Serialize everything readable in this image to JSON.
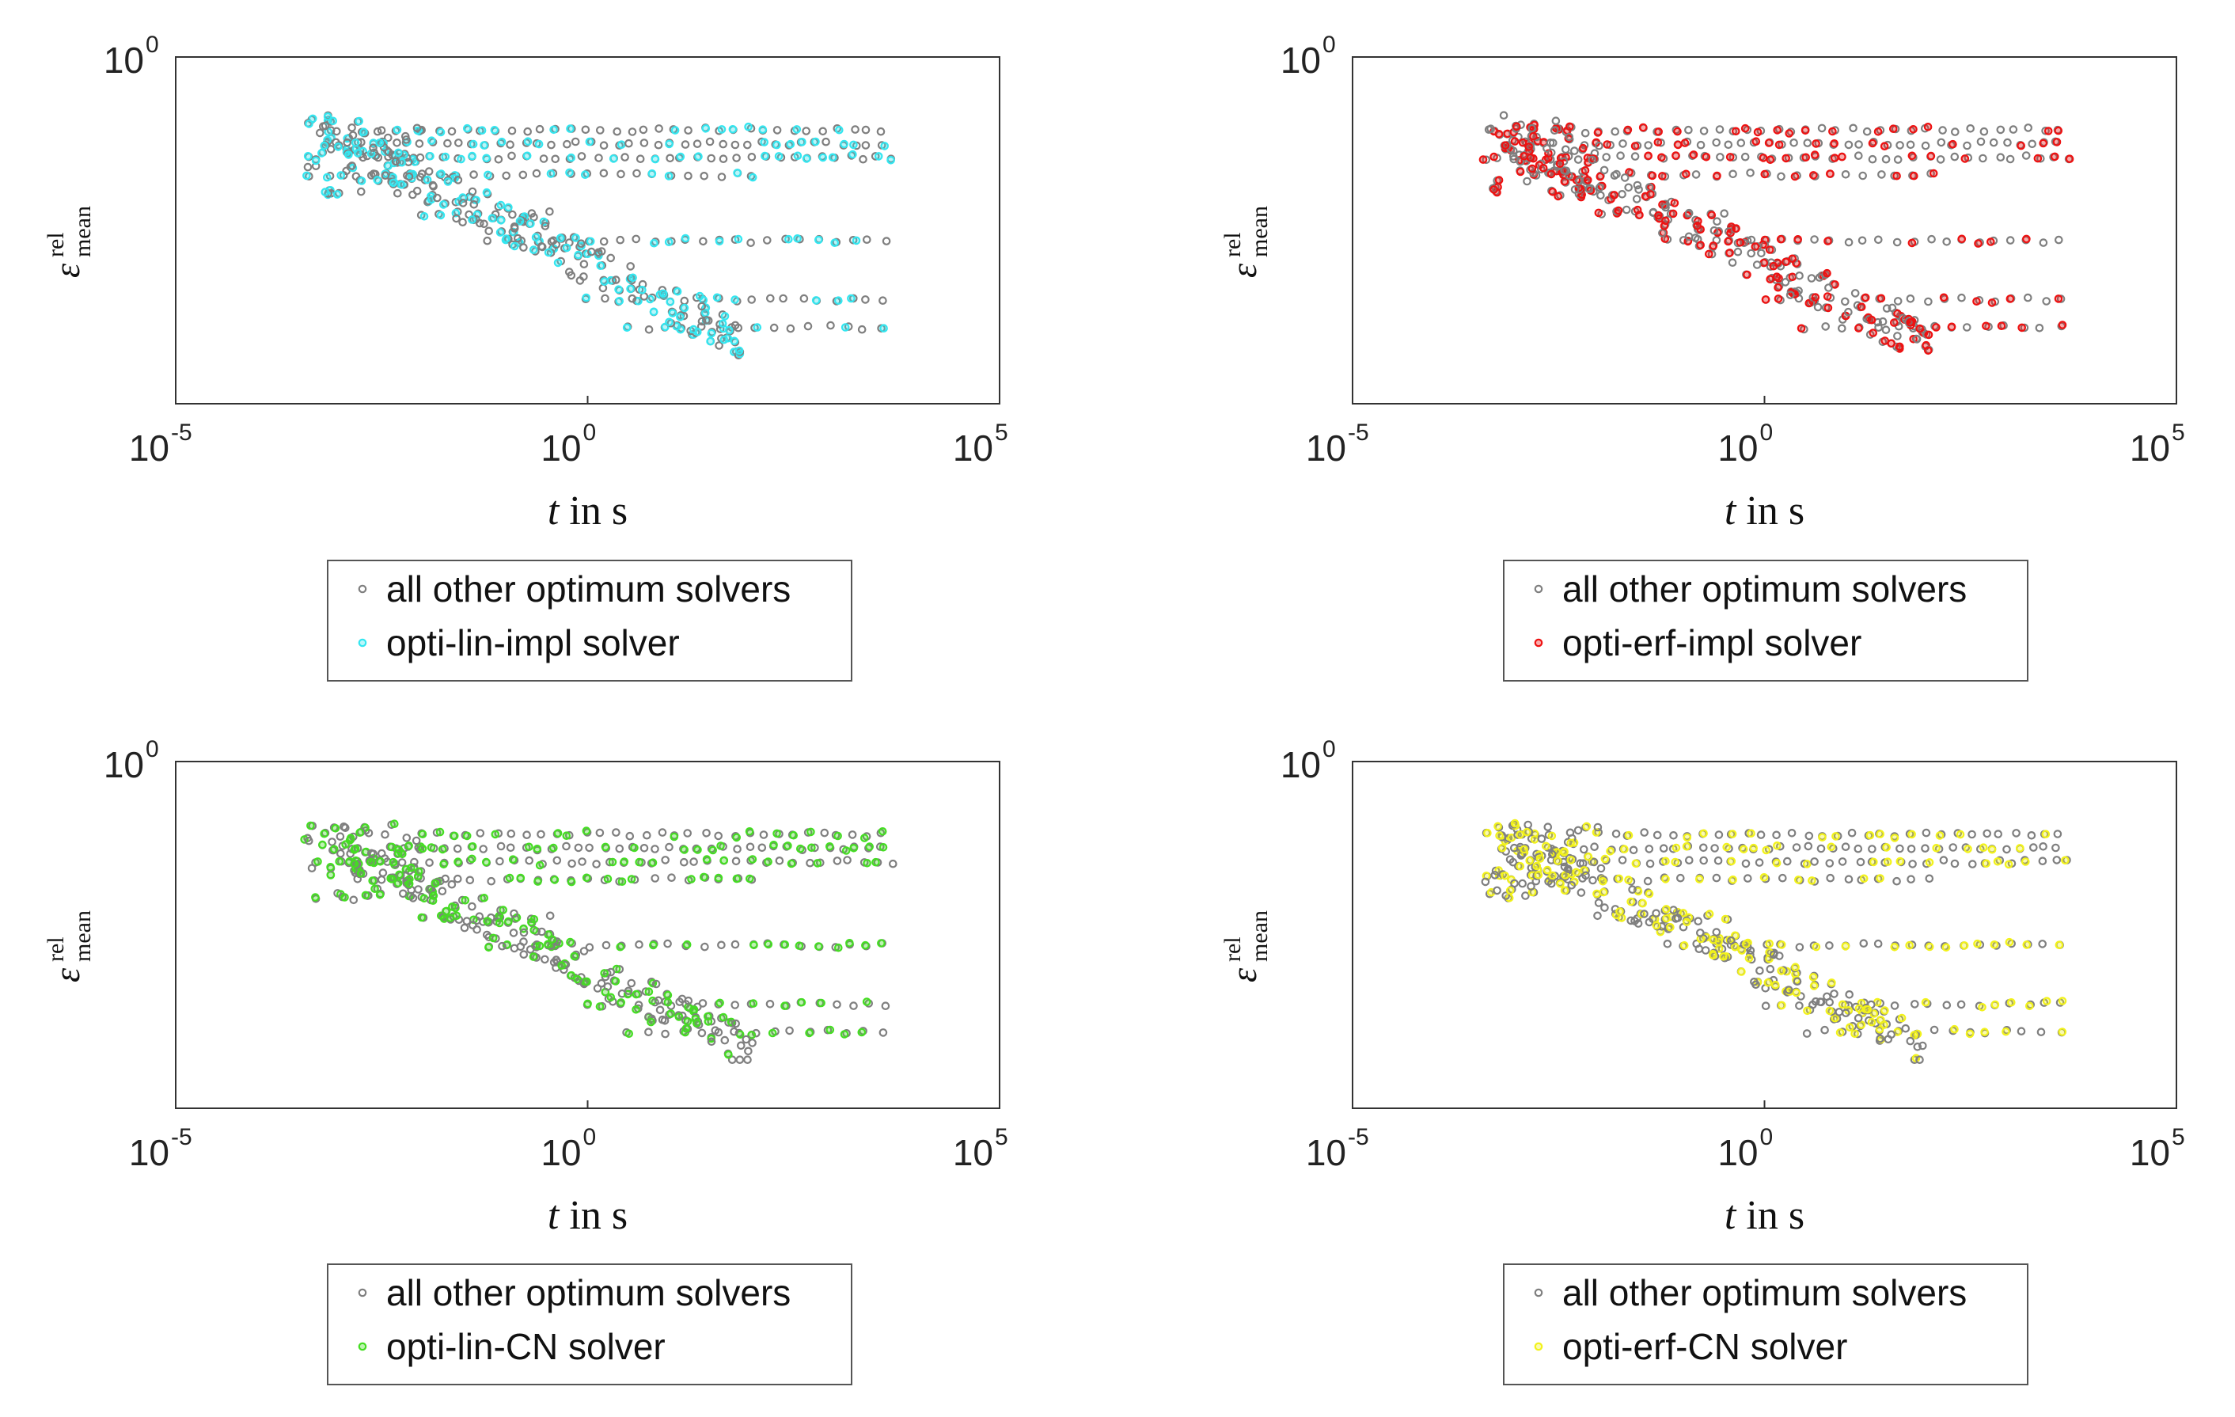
{
  "chart_data": [
    {
      "type": "scatter",
      "xscale": "log",
      "xlim": [
        1e-05,
        100000
      ],
      "x_ticks": [
        {
          "base": "10",
          "exp": "-5"
        },
        {
          "base": "10",
          "exp": "0"
        },
        {
          "base": "10",
          "exp": "5"
        }
      ],
      "y_ticks": [
        {
          "base": "10",
          "exp": "0"
        }
      ],
      "xlabel": {
        "var": "t",
        "rest": " in s"
      },
      "ylabel": {
        "var": "ε",
        "sup": "rel",
        "sub": "mean"
      },
      "highlight_color": "#33e6f0",
      "background_color": "#7f7f7f",
      "seed": 3,
      "series": [
        {
          "name": "all other optimum solvers",
          "color": "#7f7f7f"
        },
        {
          "name": "opti-lin-impl solver",
          "color": "#33e6f0"
        }
      ]
    },
    {
      "type": "scatter",
      "xscale": "log",
      "xlim": [
        1e-05,
        100000
      ],
      "x_ticks": [
        {
          "base": "10",
          "exp": "-5"
        },
        {
          "base": "10",
          "exp": "0"
        },
        {
          "base": "10",
          "exp": "5"
        }
      ],
      "y_ticks": [
        {
          "base": "10",
          "exp": "0"
        }
      ],
      "xlabel": {
        "var": "t",
        "rest": " in s"
      },
      "ylabel": {
        "var": "ε",
        "sup": "rel",
        "sub": "mean"
      },
      "highlight_color": "#ee1111",
      "background_color": "#7f7f7f",
      "seed": 7,
      "series": [
        {
          "name": "all other optimum solvers",
          "color": "#7f7f7f"
        },
        {
          "name": "opti-erf-impl solver",
          "color": "#ee1111"
        }
      ]
    },
    {
      "type": "scatter",
      "xscale": "log",
      "xlim": [
        1e-05,
        100000
      ],
      "x_ticks": [
        {
          "base": "10",
          "exp": "-5"
        },
        {
          "base": "10",
          "exp": "0"
        },
        {
          "base": "10",
          "exp": "5"
        }
      ],
      "y_ticks": [
        {
          "base": "10",
          "exp": "0"
        }
      ],
      "xlabel": {
        "var": "t",
        "rest": " in s"
      },
      "ylabel": {
        "var": "ε",
        "sup": "rel",
        "sub": "mean"
      },
      "highlight_color": "#44dd22",
      "background_color": "#7f7f7f",
      "seed": 11,
      "series": [
        {
          "name": "all other optimum solvers",
          "color": "#7f7f7f"
        },
        {
          "name": "opti-lin-CN solver",
          "color": "#44dd22"
        }
      ]
    },
    {
      "type": "scatter",
      "xscale": "log",
      "xlim": [
        1e-05,
        100000
      ],
      "x_ticks": [
        {
          "base": "10",
          "exp": "-5"
        },
        {
          "base": "10",
          "exp": "0"
        },
        {
          "base": "10",
          "exp": "5"
        }
      ],
      "y_ticks": [
        {
          "base": "10",
          "exp": "0"
        }
      ],
      "xlabel": {
        "var": "t",
        "rest": " in s"
      },
      "ylabel": {
        "var": "ε",
        "sup": "rel",
        "sub": "mean"
      },
      "highlight_color": "#f2f21a",
      "background_color": "#7f7f7f",
      "seed": 19,
      "series": [
        {
          "name": "all other optimum solvers",
          "color": "#7f7f7f"
        },
        {
          "name": "opti-erf-CN solver",
          "color": "#f2f21a"
        }
      ]
    }
  ]
}
